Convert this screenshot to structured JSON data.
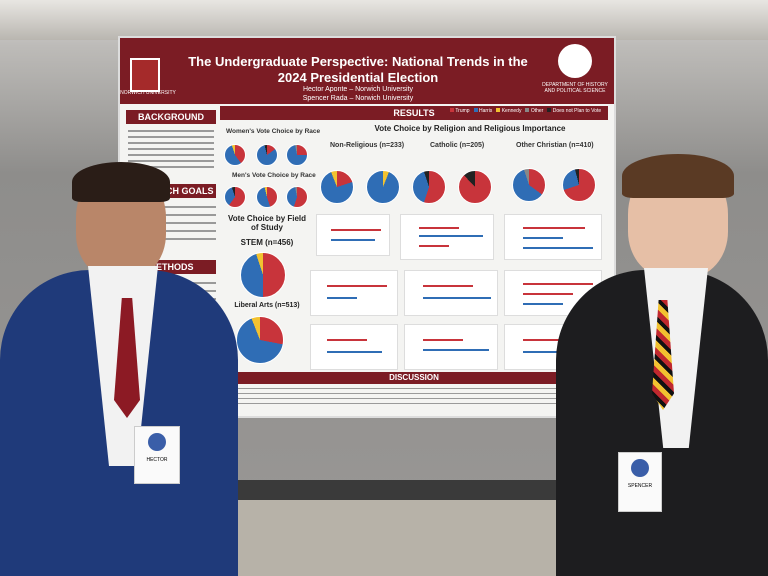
{
  "poster": {
    "title": "The Undergraduate Perspective: National Trends in the 2024 Presidential Election",
    "authors": [
      "Hector Aponte – Norwich University",
      "Spencer Rada – Norwich University"
    ],
    "logo_left": "NORWICH UNIVERSITY",
    "logo_right": "DEPARTMENT OF HISTORY AND POLITICAL SCIENCE",
    "sections": {
      "background": "BACKGROUND",
      "goals": "RESEARCH GOALS",
      "methods": "METHODS",
      "results": "RESULTS",
      "discussion": "DISCUSSION"
    },
    "legend": [
      "Trump",
      "Harris",
      "Kennedy",
      "Other",
      "Does not Plan to Vote"
    ],
    "charts": {
      "women": "Women's Vote Choice by Race",
      "men": "Men's Vote Choice by Race",
      "field": "Vote Choice by Field of Study",
      "stem": "STEM (n=456)",
      "liberal": "Liberal Arts (n=513)",
      "religion": "Vote Choice by Religion and Religious Importance",
      "nonreligious": "Non-Religious (n=233)",
      "catholic": "Catholic (n=205)",
      "christian": "Other Christian (n=410)"
    }
  },
  "badges": [
    "HECTOR",
    "SPENCER"
  ]
}
